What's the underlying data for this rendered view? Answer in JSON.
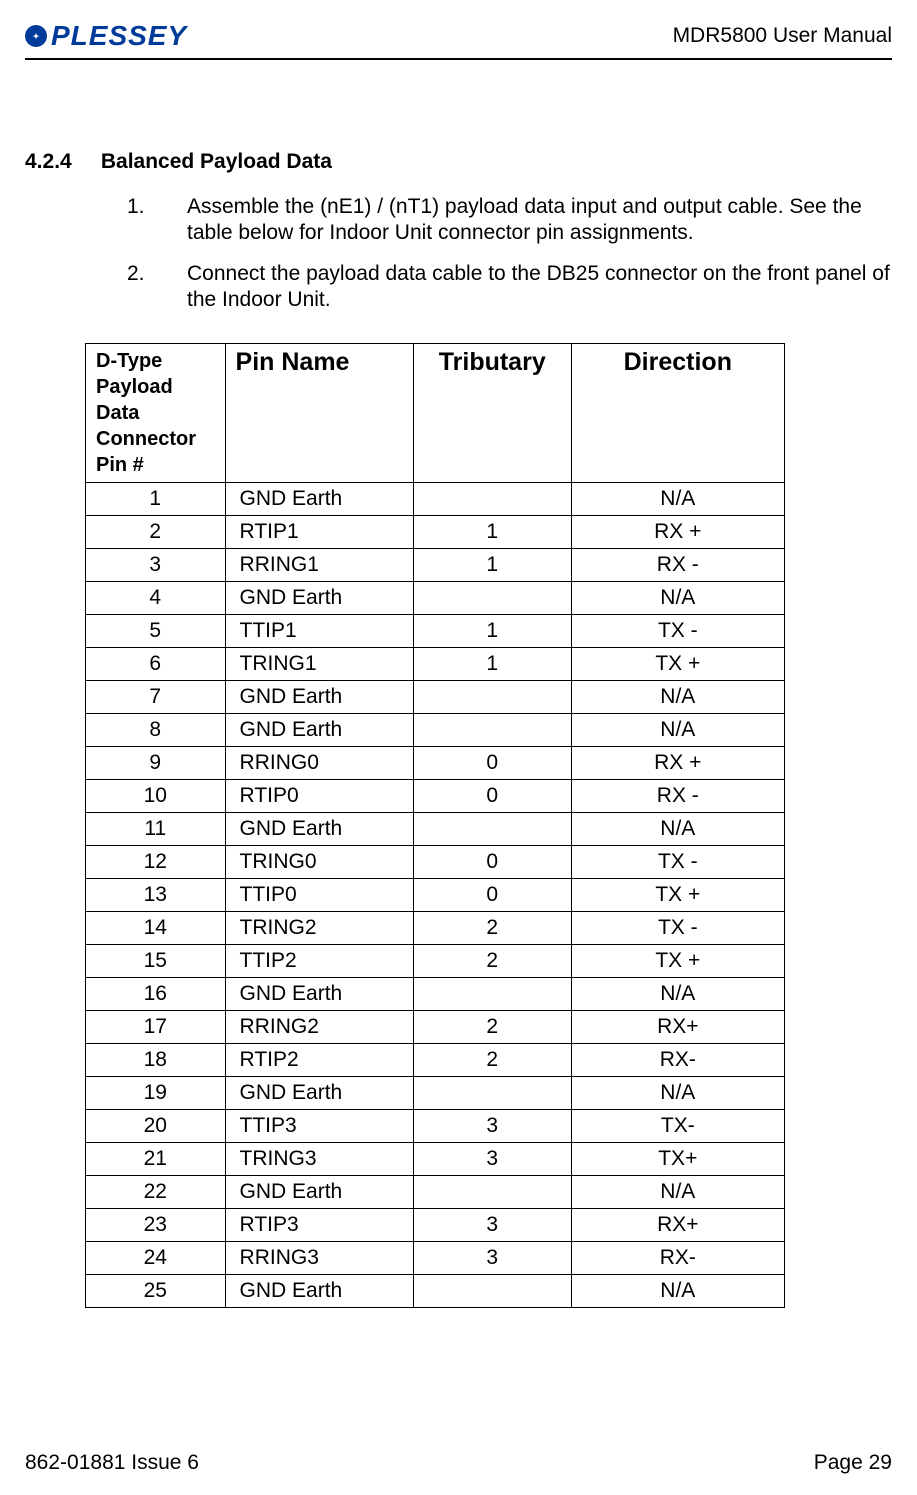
{
  "header": {
    "logo_text": "PLESSEY",
    "doc_title": "MDR5800 User Manual"
  },
  "section": {
    "number": "4.2.4",
    "title": "Balanced Payload Data"
  },
  "list": [
    {
      "num": "1.",
      "text": "Assemble the (nE1) / (nT1) payload data input and output cable.  See the table below for Indoor Unit connector pin assignments."
    },
    {
      "num": "2.",
      "text": "Connect the payload data cable to the DB25 connector on the front panel of the Indoor Unit."
    }
  ],
  "table": {
    "columns": {
      "pin": "D-Type Payload Data Connector",
      "pin2": "Pin  #",
      "name": "Pin Name",
      "trib": "Tributary",
      "dir": "Direction"
    },
    "rows": [
      {
        "pin": "1",
        "name": "GND Earth",
        "trib": "",
        "dir": "N/A"
      },
      {
        "pin": "2",
        "name": "RTIP1",
        "trib": "1",
        "dir": "RX +"
      },
      {
        "pin": "3",
        "name": "RRING1",
        "trib": "1",
        "dir": "RX -"
      },
      {
        "pin": "4",
        "name": "GND Earth",
        "trib": "",
        "dir": "N/A"
      },
      {
        "pin": "5",
        "name": "TTIP1",
        "trib": "1",
        "dir": "TX -"
      },
      {
        "pin": "6",
        "name": "TRING1",
        "trib": "1",
        "dir": "TX +"
      },
      {
        "pin": "7",
        "name": "GND Earth",
        "trib": "",
        "dir": "N/A"
      },
      {
        "pin": "8",
        "name": "GND Earth",
        "trib": "",
        "dir": "N/A"
      },
      {
        "pin": "9",
        "name": "RRING0",
        "trib": "0",
        "dir": "RX +"
      },
      {
        "pin": "10",
        "name": "RTIP0",
        "trib": "0",
        "dir": "RX -"
      },
      {
        "pin": "11",
        "name": "GND Earth",
        "trib": "",
        "dir": "N/A"
      },
      {
        "pin": "12",
        "name": "TRING0",
        "trib": "0",
        "dir": "TX -"
      },
      {
        "pin": "13",
        "name": "TTIP0",
        "trib": "0",
        "dir": "TX +"
      },
      {
        "pin": "14",
        "name": "TRING2",
        "trib": "2",
        "dir": "TX -"
      },
      {
        "pin": "15",
        "name": "TTIP2",
        "trib": "2",
        "dir": "TX +"
      },
      {
        "pin": "16",
        "name": "GND Earth",
        "trib": "",
        "dir": "N/A"
      },
      {
        "pin": "17",
        "name": "RRING2",
        "trib": "2",
        "dir": "RX+"
      },
      {
        "pin": "18",
        "name": "RTIP2",
        "trib": "2",
        "dir": "RX-"
      },
      {
        "pin": "19",
        "name": "GND Earth",
        "trib": "",
        "dir": "N/A"
      },
      {
        "pin": "20",
        "name": "TTIP3",
        "trib": "3",
        "dir": "TX-"
      },
      {
        "pin": "21",
        "name": "TRING3",
        "trib": "3",
        "dir": "TX+"
      },
      {
        "pin": "22",
        "name": "GND Earth",
        "trib": "",
        "dir": "N/A"
      },
      {
        "pin": "23",
        "name": "RTIP3",
        "trib": "3",
        "dir": "RX+"
      },
      {
        "pin": "24",
        "name": "RRING3",
        "trib": "3",
        "dir": "RX-"
      },
      {
        "pin": "25",
        "name": "GND Earth",
        "trib": "",
        "dir": "N/A"
      }
    ]
  },
  "footer": {
    "left": "862-01881 Issue 6",
    "right": "Page 29"
  }
}
